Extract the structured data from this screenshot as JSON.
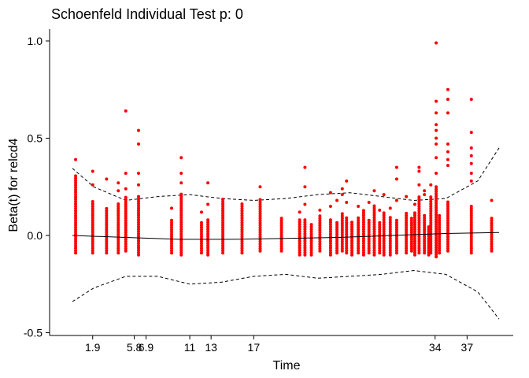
{
  "chart_data": {
    "type": "scatter",
    "title": "Schoenfeld Individual Test p: 0",
    "xlabel": "Time",
    "ylabel": "Beta(t) for relcd4",
    "ylim": [
      -0.5,
      1.05
    ],
    "y_ticks": [
      -0.5,
      0.0,
      0.5,
      1.0
    ],
    "y_tick_labels": [
      "-0.5",
      "0.0",
      "0.5",
      "1.0"
    ],
    "x_tick_labels": [
      "1.9",
      "5.8",
      "6.9",
      "11",
      "13",
      "17",
      "34",
      "37"
    ],
    "x_tick_positions": [
      1.9,
      5.8,
      6.9,
      11,
      13,
      17,
      34,
      37
    ],
    "point_color": "#ff0000",
    "columns": [
      {
        "x": 0.3,
        "min": -0.09,
        "max": 0.31,
        "extras": [
          0.39
        ]
      },
      {
        "x": 1.9,
        "min": -0.09,
        "max": 0.18,
        "extras": [
          0.26,
          0.33
        ]
      },
      {
        "x": 3.2,
        "min": -0.09,
        "max": 0.14,
        "extras": [
          0.29
        ]
      },
      {
        "x": 4.3,
        "min": -0.09,
        "max": 0.17,
        "extras": [
          0.23,
          0.27
        ]
      },
      {
        "x": 5.0,
        "min": -0.08,
        "max": 0.2,
        "extras": [
          0.24,
          0.32,
          0.64
        ]
      },
      {
        "x": 6.2,
        "min": -0.1,
        "max": 0.21,
        "extras": [
          0.26,
          0.32,
          0.47,
          0.54
        ]
      },
      {
        "x": 9.3,
        "min": -0.09,
        "max": 0.08,
        "extras": [
          0.14
        ]
      },
      {
        "x": 10.2,
        "min": -0.1,
        "max": 0.22,
        "extras": [
          0.27,
          0.32,
          0.4
        ]
      },
      {
        "x": 12.1,
        "min": -0.09,
        "max": 0.07,
        "extras": [
          0.12
        ]
      },
      {
        "x": 12.7,
        "min": -0.1,
        "max": 0.08,
        "extras": [
          0.16,
          0.27
        ]
      },
      {
        "x": 14.1,
        "min": -0.09,
        "max": 0.19,
        "extras": []
      },
      {
        "x": 15.9,
        "min": -0.09,
        "max": 0.17,
        "extras": []
      },
      {
        "x": 17.6,
        "min": -0.08,
        "max": 0.19,
        "extras": [
          0.25
        ]
      },
      {
        "x": 19.6,
        "min": -0.08,
        "max": 0.09,
        "extras": []
      },
      {
        "x": 21.3,
        "min": -0.1,
        "max": 0.08,
        "extras": [
          0.12
        ]
      },
      {
        "x": 21.8,
        "min": -0.1,
        "max": 0.09,
        "extras": [
          0.16,
          0.25,
          0.35
        ]
      },
      {
        "x": 22.4,
        "min": -0.1,
        "max": 0.06,
        "extras": []
      },
      {
        "x": 23.2,
        "min": -0.08,
        "max": 0.1,
        "extras": [
          0.13
        ]
      },
      {
        "x": 24.2,
        "min": -0.1,
        "max": 0.09,
        "extras": [
          0.15,
          0.22
        ]
      },
      {
        "x": 24.8,
        "min": -0.09,
        "max": 0.07,
        "extras": [
          0.18
        ]
      },
      {
        "x": 25.3,
        "min": -0.08,
        "max": 0.12,
        "extras": [
          0.21,
          0.24
        ]
      },
      {
        "x": 25.7,
        "min": -0.09,
        "max": 0.09,
        "extras": [
          0.17,
          0.28
        ]
      },
      {
        "x": 26.2,
        "min": -0.1,
        "max": 0.07,
        "extras": []
      },
      {
        "x": 26.8,
        "min": -0.09,
        "max": 0.1,
        "extras": [
          0.15
        ]
      },
      {
        "x": 27.3,
        "min": -0.1,
        "max": 0.13,
        "extras": []
      },
      {
        "x": 27.8,
        "min": -0.09,
        "max": 0.08,
        "extras": [
          0.17
        ]
      },
      {
        "x": 28.3,
        "min": -0.1,
        "max": 0.16,
        "extras": [
          0.23
        ]
      },
      {
        "x": 28.8,
        "min": -0.09,
        "max": 0.07,
        "extras": [
          0.13
        ]
      },
      {
        "x": 29.2,
        "min": -0.1,
        "max": 0.12,
        "extras": [
          0.21
        ]
      },
      {
        "x": 29.8,
        "min": -0.1,
        "max": 0.1,
        "extras": [
          0.14
        ]
      },
      {
        "x": 30.4,
        "min": -0.09,
        "max": 0.08,
        "extras": [
          0.18,
          0.29,
          0.35
        ]
      },
      {
        "x": 31.3,
        "min": -0.09,
        "max": 0.12,
        "extras": [
          0.2
        ]
      },
      {
        "x": 31.8,
        "min": -0.08,
        "max": 0.09,
        "extras": []
      },
      {
        "x": 32.1,
        "min": -0.1,
        "max": 0.12,
        "extras": [
          0.16
        ]
      },
      {
        "x": 32.5,
        "min": -0.09,
        "max": 0.2,
        "extras": [
          0.26,
          0.33,
          0.35
        ]
      },
      {
        "x": 33.0,
        "min": -0.09,
        "max": 0.11,
        "extras": [
          0.21,
          0.23
        ]
      },
      {
        "x": 33.4,
        "min": -0.1,
        "max": 0.05,
        "extras": []
      },
      {
        "x": 33.6,
        "min": -0.09,
        "max": 0.2,
        "extras": [
          0.26
        ]
      },
      {
        "x": 34.1,
        "min": -0.11,
        "max": 0.25,
        "extras": [
          0.32,
          0.4,
          0.47,
          0.5,
          0.54,
          0.57,
          0.63,
          0.69,
          0.99
        ]
      },
      {
        "x": 34.4,
        "min": -0.09,
        "max": 0.11,
        "extras": []
      },
      {
        "x": 35.2,
        "min": -0.08,
        "max": 0.18,
        "extras": [
          0.36,
          0.39,
          0.43,
          0.47,
          0.63,
          0.7,
          0.75
        ]
      },
      {
        "x": 37.4,
        "min": -0.09,
        "max": 0.15,
        "extras": [
          0.28,
          0.32,
          0.37,
          0.41,
          0.45,
          0.53,
          0.7
        ]
      },
      {
        "x": 39.3,
        "min": -0.08,
        "max": 0.09,
        "extras": [
          0.18
        ]
      }
    ],
    "fit": {
      "x": [
        0,
        5,
        10,
        15,
        20,
        25,
        30,
        35,
        40
      ],
      "y": [
        0.0,
        -0.01,
        -0.02,
        -0.02,
        -0.015,
        -0.01,
        0.0,
        0.01,
        0.015
      ]
    },
    "upper": {
      "x": [
        0,
        2,
        5,
        8,
        11,
        14,
        17,
        20,
        23,
        26,
        29,
        32,
        35,
        38,
        40
      ],
      "y": [
        0.345,
        0.25,
        0.18,
        0.2,
        0.21,
        0.19,
        0.18,
        0.19,
        0.21,
        0.22,
        0.2,
        0.18,
        0.19,
        0.28,
        0.45
      ]
    },
    "lower": {
      "x": [
        0,
        2,
        5,
        8,
        11,
        14,
        17,
        20,
        23,
        26,
        29,
        32,
        35,
        38,
        40
      ],
      "y": [
        -0.34,
        -0.27,
        -0.21,
        -0.21,
        -0.25,
        -0.24,
        -0.21,
        -0.2,
        -0.22,
        -0.21,
        -0.2,
        -0.18,
        -0.2,
        -0.29,
        -0.43
      ]
    }
  }
}
